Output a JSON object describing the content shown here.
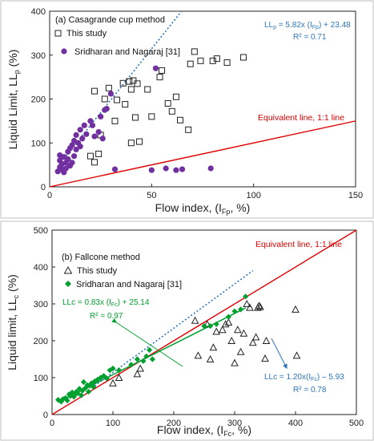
{
  "chart_data": [
    {
      "type": "scatter",
      "panel_label": "(a) Casagrande cup method",
      "xlabel": "Flow index, (I",
      "xlabel_sub": "Fp",
      "xlabel_end": ", %)",
      "ylabel": "Liquid Limit, LL",
      "ylabel_sub": "p",
      "ylabel_end": " (%)",
      "xlim": [
        0,
        150
      ],
      "ylim": [
        0,
        400
      ],
      "xticks": [
        "0",
        "50",
        "100",
        "150"
      ],
      "yticks": [
        "0",
        "100",
        "200",
        "300",
        "400"
      ],
      "grid": false,
      "legend_position": "top-left",
      "series": [
        {
          "name": "This study",
          "marker": "open-square",
          "color": "#222222",
          "points": [
            [
              20,
              70
            ],
            [
              22,
              56
            ],
            [
              22,
              218
            ],
            [
              24,
              75
            ],
            [
              25,
              118
            ],
            [
              27,
              200
            ],
            [
              29,
              225
            ],
            [
              32,
              150
            ],
            [
              33,
              198
            ],
            [
              36,
              236
            ],
            [
              37,
              188
            ],
            [
              39,
              240
            ],
            [
              40,
              222
            ],
            [
              40,
              100
            ],
            [
              41,
              242
            ],
            [
              42,
              158
            ],
            [
              43,
              235
            ],
            [
              44,
              103
            ],
            [
              48,
              222
            ],
            [
              50,
              160
            ],
            [
              54,
              250
            ],
            [
              55,
              265
            ],
            [
              58,
              190
            ],
            [
              60,
              172
            ],
            [
              62,
              205
            ],
            [
              64,
              152
            ],
            [
              68,
              130
            ],
            [
              69,
              280
            ],
            [
              71,
              308
            ],
            [
              74,
              287
            ],
            [
              80,
              287
            ],
            [
              82,
              292
            ],
            [
              87,
              283
            ],
            [
              95,
              295
            ]
          ]
        },
        {
          "name": "Sridharan and Nagaraj [31]",
          "marker": "filled-circle",
          "color": "#7030a0",
          "points": [
            [
              4,
              35
            ],
            [
              5,
              45
            ],
            [
              5,
              60
            ],
            [
              5,
              72
            ],
            [
              6,
              40
            ],
            [
              6,
              52
            ],
            [
              7,
              33
            ],
            [
              7,
              68
            ],
            [
              8,
              55
            ],
            [
              8,
              42
            ],
            [
              9,
              80
            ],
            [
              9,
              63
            ],
            [
              10,
              48
            ],
            [
              10,
              88
            ],
            [
              11,
              95
            ],
            [
              11,
              55
            ],
            [
              12,
              105
            ],
            [
              12,
              70
            ],
            [
              13,
              118
            ],
            [
              13,
              85
            ],
            [
              14,
              100
            ],
            [
              15,
              92
            ],
            [
              15,
              130
            ],
            [
              16,
              110
            ],
            [
              17,
              140
            ],
            [
              18,
              120
            ],
            [
              20,
              150
            ],
            [
              21,
              140
            ],
            [
              22,
              115
            ],
            [
              24,
              125
            ],
            [
              25,
              160
            ],
            [
              26,
              110
            ],
            [
              27,
              175
            ],
            [
              28,
              178
            ],
            [
              30,
              212
            ],
            [
              32,
              40
            ],
            [
              50,
              38
            ],
            [
              52,
              270
            ],
            [
              57,
              42
            ],
            [
              62,
              38
            ],
            [
              65,
              40
            ],
            [
              79,
              42
            ]
          ]
        }
      ],
      "fit_line": {
        "slope": 5.82,
        "intercept": 23.48,
        "x_range": [
          7,
          93
        ],
        "color": "#2e75b6"
      },
      "ref_line": {
        "slope": 1,
        "intercept": 0,
        "x_range": [
          0,
          150
        ],
        "color": "#e00000"
      },
      "annotations": {
        "equation": "LL",
        "equation_sub": "p",
        "equation_mid": " = 5.82x (I",
        "equation_sub2": "Fp",
        "equation_end": ") + 23.48",
        "r2": "R² = 0.71",
        "equivalent_line": "Equivalent line, 1:1 line"
      }
    },
    {
      "type": "scatter",
      "panel_label": "(b) Fallcone method",
      "xlabel": "Flow index, (I",
      "xlabel_sub": "Fc",
      "xlabel_end": ", %)",
      "ylabel": "Liquid limit, LL",
      "ylabel_sub": "c",
      "ylabel_end": " (%)",
      "xlim": [
        0,
        500
      ],
      "ylim": [
        0,
        500
      ],
      "xticks": [
        "0",
        "100",
        "200",
        "300",
        "400",
        "500"
      ],
      "yticks": [
        "0",
        "100",
        "200",
        "300",
        "400",
        "500"
      ],
      "grid": false,
      "legend_position": "top-left",
      "series": [
        {
          "name": "This study",
          "marker": "open-triangle",
          "color": "#222222",
          "points": [
            [
              100,
              85
            ],
            [
              110,
              100
            ],
            [
              140,
              110
            ],
            [
              145,
              125
            ],
            [
              235,
              255
            ],
            [
              240,
              160
            ],
            [
              255,
              245
            ],
            [
              260,
              150
            ],
            [
              265,
              182
            ],
            [
              270,
              225
            ],
            [
              280,
              230
            ],
            [
              285,
              245
            ],
            [
              290,
              250
            ],
            [
              295,
              200
            ],
            [
              300,
              140
            ],
            [
              305,
              230
            ],
            [
              310,
              170
            ],
            [
              315,
              220
            ],
            [
              320,
              300
            ],
            [
              325,
              290
            ],
            [
              330,
              195
            ],
            [
              335,
              210
            ],
            [
              338,
              290
            ],
            [
              340,
              295
            ],
            [
              342,
              292
            ],
            [
              350,
              152
            ],
            [
              352,
              200
            ],
            [
              400,
              285
            ],
            [
              402,
              160
            ]
          ]
        },
        {
          "name": "Sridharan and Nagaraj [31]",
          "marker": "filled-diamond",
          "color": "#00a030",
          "points": [
            [
              10,
              40
            ],
            [
              15,
              35
            ],
            [
              18,
              42
            ],
            [
              22,
              45
            ],
            [
              25,
              38
            ],
            [
              28,
              55
            ],
            [
              30,
              50
            ],
            [
              33,
              60
            ],
            [
              36,
              48
            ],
            [
              38,
              55
            ],
            [
              40,
              62
            ],
            [
              42,
              58
            ],
            [
              45,
              70
            ],
            [
              48,
              52
            ],
            [
              50,
              65
            ],
            [
              52,
              88
            ],
            [
              55,
              72
            ],
            [
              58,
              80
            ],
            [
              60,
              62
            ],
            [
              62,
              78
            ],
            [
              65,
              85
            ],
            [
              68,
              75
            ],
            [
              70,
              90
            ],
            [
              75,
              95
            ],
            [
              80,
              100
            ],
            [
              85,
              105
            ],
            [
              90,
              98
            ],
            [
              95,
              120
            ],
            [
              100,
              125
            ],
            [
              110,
              120
            ],
            [
              130,
              135
            ],
            [
              140,
              150
            ],
            [
              150,
              145
            ],
            [
              155,
              158
            ],
            [
              160,
              175
            ],
            [
              165,
              150
            ],
            [
              250,
              240
            ],
            [
              260,
              240
            ],
            [
              270,
              245
            ],
            [
              290,
              265
            ],
            [
              300,
              280
            ],
            [
              310,
              285
            ],
            [
              318,
              320
            ]
          ]
        }
      ],
      "fit_lines": [
        {
          "series": "Sridharan and Nagaraj [31]",
          "slope": 0.83,
          "intercept": 25.14,
          "x_range": [
            10,
            318
          ],
          "color": "#00a030"
        },
        {
          "series": "This study",
          "slope": 1.2,
          "intercept": -5.93,
          "x_range": [
            70,
            330
          ],
          "color": "#2e75b6"
        }
      ],
      "ref_line": {
        "slope": 1,
        "intercept": 0,
        "x_range": [
          0,
          500
        ],
        "color": "#e00000"
      },
      "annotations": {
        "equivalent_line": "Equivalent line, 1:1 line",
        "green_eq_start": "LLc = 0.83x (I",
        "green_eq_sub": "Fc",
        "green_eq_end": ") + 25.14",
        "green_r2": "R² = 0.97",
        "blue_eq_start": "LLc = 1.20x(I",
        "blue_eq_sub": "Fc",
        "blue_eq_end": ") – 5.93",
        "blue_r2": "R² = 0.78"
      }
    }
  ]
}
